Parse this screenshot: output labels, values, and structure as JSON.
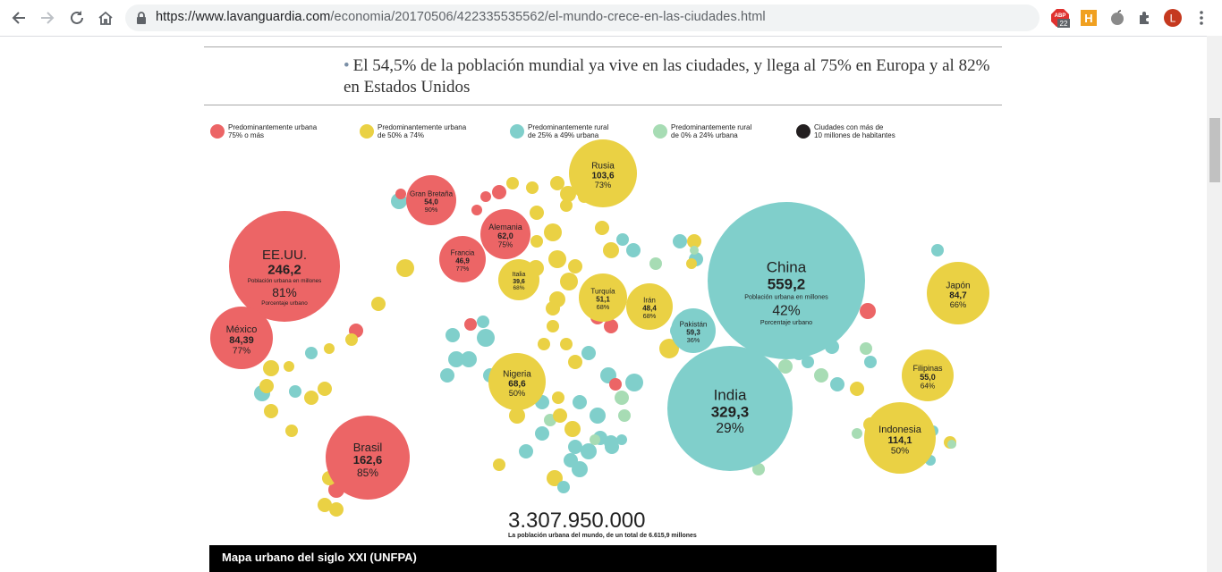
{
  "browser": {
    "url_domain": "https://www.lavanguardia.com",
    "url_path": "/economia/20170506/422335535562/el-mundo-crece-en-las-ciudades.html",
    "abp_badge": "22",
    "profile_initial": "L",
    "icons": [
      "back-icon",
      "forward-icon",
      "reload-icon",
      "home-icon",
      "lock-icon",
      "adblock-icon",
      "honey-icon",
      "apple-icon",
      "extensions-icon",
      "profile-icon",
      "menu-icon"
    ]
  },
  "article": {
    "bullet": "El 54,5% de la población mundial ya vive en las ciudades, y llega al 75% en Europa y al 82% en Estados Unidos"
  },
  "infographic": {
    "colors": {
      "urban75": "#ec6566",
      "urban50": "#ead144",
      "rural25": "#80cfcb",
      "rural0": "#a7dcb4",
      "megacity": "#231f20"
    },
    "legend": [
      {
        "line1": "Predominantemente urbana",
        "line2": "75% o más",
        "color": "#ec6566"
      },
      {
        "line1": "Predominantemente urbana",
        "line2": "de 50% a 74%",
        "color": "#ead144"
      },
      {
        "line1": "Predominantemente rural",
        "line2": "de 25% a 49% urbana",
        "color": "#80cfcb"
      },
      {
        "line1": "Predominantemente rural",
        "line2": "de 0% a 24% urbana",
        "color": "#a7dcb4"
      },
      {
        "line1": "Ciudades con más de",
        "line2": "10 millones de habitantes",
        "color": "#231f20"
      }
    ],
    "big": {
      "usa": {
        "name": "EE.UU.",
        "value": "246,2",
        "sub": "Población urbana en millones",
        "pct": "81%",
        "pctsub": "Porcentaje urbano"
      },
      "china": {
        "name": "China",
        "value": "559,2",
        "sub": "Población urbana en millones",
        "pct": "42%",
        "pctsub": "Porcentaje urbano"
      },
      "india": {
        "name": "India",
        "value": "329,3",
        "pct": "29%"
      },
      "brasil": {
        "name": "Brasil",
        "value": "162,6",
        "pct": "85%"
      },
      "rusia": {
        "name": "Rusia",
        "value": "103,6",
        "pct": "73%"
      },
      "indonesia": {
        "name": "Indonesia",
        "value": "114,1",
        "pct": "50%"
      },
      "mexico": {
        "name": "México",
        "value": "84,39",
        "pct": "77%"
      },
      "japon": {
        "name": "Japón",
        "value": "84,7",
        "pct": "66%"
      },
      "nigeria": {
        "name": "Nigeria",
        "value": "68,6",
        "pct": "50%"
      },
      "alemania": {
        "name": "Alemania",
        "value": "62,0",
        "pct": "75%"
      },
      "gb": {
        "name": "Gran Bretaña",
        "value": "54,0",
        "pct": "90%"
      },
      "filipinas": {
        "name": "Filipinas",
        "value": "55,0",
        "pct": "64%"
      },
      "turquia": {
        "name": "Turquía",
        "value": "51,1",
        "pct": "68%"
      },
      "iran": {
        "name": "Irán",
        "value": "48,4",
        "pct": "68%"
      },
      "francia": {
        "name": "Francia",
        "value": "46,9",
        "pct": "77%"
      },
      "italia": {
        "name": "Italia",
        "value": "39,6",
        "pct": "68%"
      },
      "pakistan": {
        "name": "Pakistán",
        "value": "59,3",
        "pct": "36%"
      }
    },
    "total": "3.307.950.000",
    "total_caption": "La población urbana del mundo, de un total de 6.615,9 millones",
    "caption_bar": "Mapa urbano del siglo XXI (UNFPA)"
  }
}
